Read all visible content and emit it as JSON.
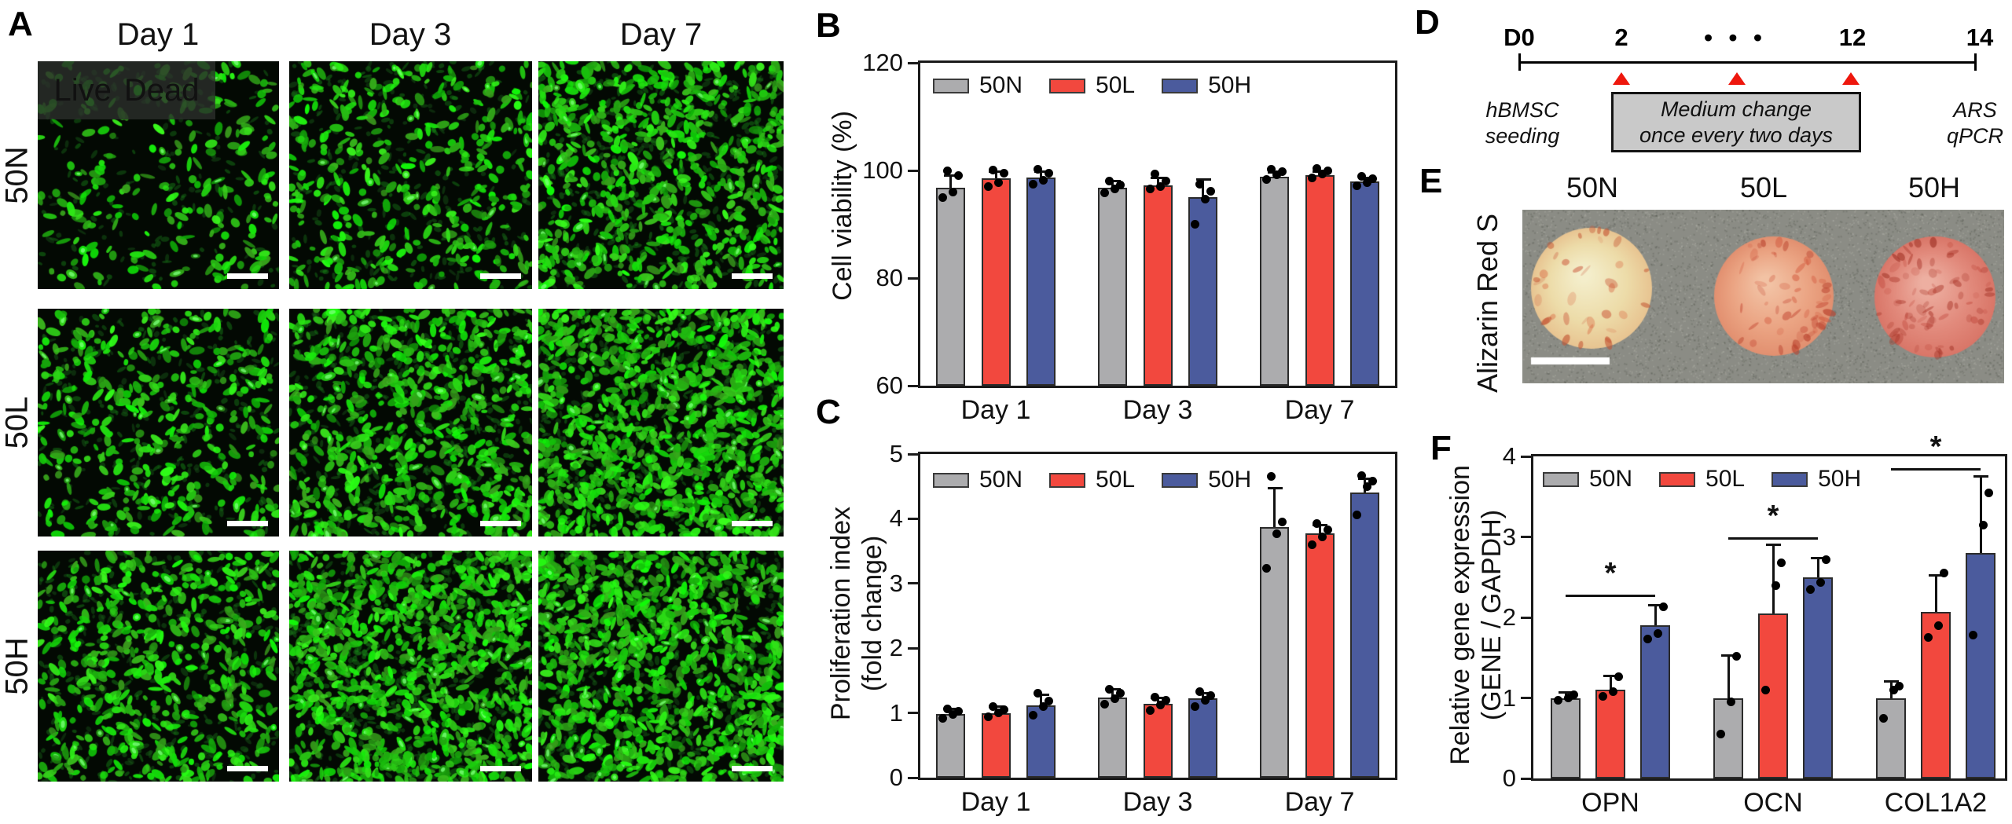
{
  "panels": {
    "A": {
      "label": "A",
      "col_headers": [
        "Day 1",
        "Day 3",
        "Day 7"
      ],
      "row_labels": [
        "50N",
        "50L",
        "50H"
      ],
      "overlay": {
        "live": "Live",
        "dead": "Dead"
      },
      "cell_density": [
        [
          "sparse",
          "medium",
          "dense"
        ],
        [
          "medium",
          "dense",
          "very-dense"
        ],
        [
          "medium-dense",
          "very-dense",
          "very-dense"
        ]
      ]
    },
    "B": {
      "label": "B"
    },
    "C": {
      "label": "C"
    },
    "D": {
      "label": "D",
      "timeline": {
        "tick_labels": [
          "D0",
          "2",
          "•  •  •",
          "12",
          "14"
        ],
        "left_caption": [
          "hBMSC",
          "seeding"
        ],
        "box_caption": [
          "Medium change",
          "once every two days"
        ],
        "right_caption": [
          "ARS",
          "qPCR"
        ]
      }
    },
    "E": {
      "label": "E",
      "row_label": "Alizarin Red S",
      "col_headers": [
        "50N",
        "50L",
        "50H"
      ]
    },
    "F": {
      "label": "F"
    }
  },
  "colors": {
    "series": {
      "50N": "#ACACAE",
      "50L": "#F2483E",
      "50H": "#4B5B9D"
    },
    "live_green": "#3BD97B",
    "dead_red": "#FF1E1E",
    "arrow_red": "#EE170D",
    "box_gray": "#C9C9C9",
    "bar_edge": "#2B2B2B"
  },
  "chart_data": [
    {
      "id": "B",
      "type": "bar",
      "title": "",
      "ylabel": "Cell viability (%)",
      "ylabel_lines": [
        "Cell viability (%)"
      ],
      "categories": [
        "Day 1",
        "Day 3",
        "Day 7"
      ],
      "ylim": [
        60,
        120
      ],
      "yticks": [
        60,
        80,
        100,
        120
      ],
      "grid": false,
      "legend_position": "top-left-inside",
      "series": [
        {
          "name": "50N",
          "color": "#ACACAE",
          "values": [
            96.8,
            96.8,
            98.8
          ],
          "err_up": [
            2.2,
            1.2,
            0.8
          ],
          "points": [
            [
              95,
              96,
              99,
              100
            ],
            [
              95.8,
              96.5,
              97.3,
              98
            ],
            [
              98.3,
              99.2,
              99.8,
              100.2
            ]
          ]
        },
        {
          "name": "50L",
          "color": "#F2483E",
          "values": [
            98.5,
            97.3,
            99.1
          ],
          "err_up": [
            1.2,
            1.3,
            0.6
          ],
          "points": [
            [
              97,
              97.8,
              99.5,
              100.1
            ],
            [
              96.5,
              97,
              98,
              99.3
            ],
            [
              98.6,
              99.3,
              99.9,
              100.3
            ]
          ]
        },
        {
          "name": "50H",
          "color": "#4B5B9D",
          "values": [
            98.7,
            95.0,
            98.0
          ],
          "err_up": [
            1.0,
            3.2,
            0.6
          ],
          "points": [
            [
              97.4,
              98.2,
              99.5,
              100.2
            ],
            [
              90,
              94.6,
              96.2,
              97.4
            ],
            [
              97.2,
              97.8,
              98.4,
              98.9
            ]
          ]
        }
      ]
    },
    {
      "id": "C",
      "type": "bar",
      "title": "",
      "ylabel": "Proliferation index (fold change)",
      "ylabel_lines": [
        "Proliferation index",
        "(fold change)"
      ],
      "categories": [
        "Day 1",
        "Day 3",
        "Day 7"
      ],
      "ylim": [
        0,
        5
      ],
      "yticks": [
        0,
        1,
        2,
        3,
        4,
        5
      ],
      "grid": false,
      "legend_position": "top-left-inside",
      "series": [
        {
          "name": "50N",
          "color": "#ACACAE",
          "values": [
            0.98,
            1.24,
            3.87
          ],
          "err_up": [
            0.08,
            0.12,
            0.6
          ],
          "points": [
            [
              0.92,
              0.98,
              1.03,
              1.06
            ],
            [
              1.14,
              1.22,
              1.3,
              1.36
            ],
            [
              3.24,
              3.77,
              3.95,
              4.66
            ]
          ]
        },
        {
          "name": "50L",
          "color": "#F2483E",
          "values": [
            0.99,
            1.14,
            3.77
          ],
          "err_up": [
            0.1,
            0.08,
            0.12
          ],
          "points": [
            [
              0.94,
              1.0,
              1.05,
              1.1
            ],
            [
              1.04,
              1.12,
              1.19,
              1.25
            ],
            [
              3.6,
              3.72,
              3.83,
              3.92
            ]
          ]
        },
        {
          "name": "50H",
          "color": "#4B5B9D",
          "values": [
            1.12,
            1.22,
            4.41
          ],
          "err_up": [
            0.16,
            0.08,
            0.2
          ],
          "points": [
            [
              0.97,
              1.1,
              1.18,
              1.31
            ],
            [
              1.1,
              1.19,
              1.27,
              1.33
            ],
            [
              4.06,
              4.5,
              4.58,
              4.67
            ]
          ]
        }
      ]
    },
    {
      "id": "F",
      "type": "bar",
      "title": "",
      "ylabel": "Relative gene expression (GENE / GAPDH)",
      "ylabel_lines": [
        "Relative gene expression",
        "(GENE / GAPDH)"
      ],
      "categories": [
        "OPN",
        "OCN",
        "COL1A2"
      ],
      "ylim": [
        0,
        4
      ],
      "yticks": [
        0,
        1,
        2,
        3,
        4
      ],
      "grid": false,
      "legend_position": "top-left-inside",
      "series": [
        {
          "name": "50N",
          "color": "#ACACAE",
          "values": [
            1.0,
            1.0,
            1.0
          ],
          "err_up": [
            0.06,
            0.52,
            0.2
          ],
          "points": [
            [
              0.97,
              1.0,
              1.04
            ],
            [
              0.55,
              0.95,
              1.52
            ],
            [
              0.75,
              1.1,
              1.15
            ]
          ]
        },
        {
          "name": "50L",
          "color": "#F2483E",
          "values": [
            1.1,
            2.05,
            2.07
          ],
          "err_up": [
            0.17,
            0.85,
            0.45
          ],
          "points": [
            [
              1.02,
              1.08,
              1.26
            ],
            [
              1.1,
              2.4,
              2.68
            ],
            [
              1.75,
              1.9,
              2.55
            ]
          ]
        },
        {
          "name": "50H",
          "color": "#4B5B9D",
          "values": [
            1.9,
            2.5,
            2.8
          ],
          "err_up": [
            0.25,
            0.23,
            0.95
          ],
          "points": [
            [
              1.73,
              1.8,
              2.13
            ],
            [
              2.35,
              2.43,
              2.72
            ],
            [
              1.78,
              3.15,
              3.55
            ]
          ]
        }
      ],
      "significance": [
        {
          "category": "OPN",
          "from": "50N",
          "to": "50H",
          "y": 2.28,
          "label": "*"
        },
        {
          "category": "OCN",
          "from": "50N",
          "to": "50H",
          "y": 3.0,
          "label": "*"
        },
        {
          "category": "COL1A2",
          "from": "50N",
          "to": "50H",
          "y": 3.85,
          "label": "*"
        }
      ]
    }
  ]
}
